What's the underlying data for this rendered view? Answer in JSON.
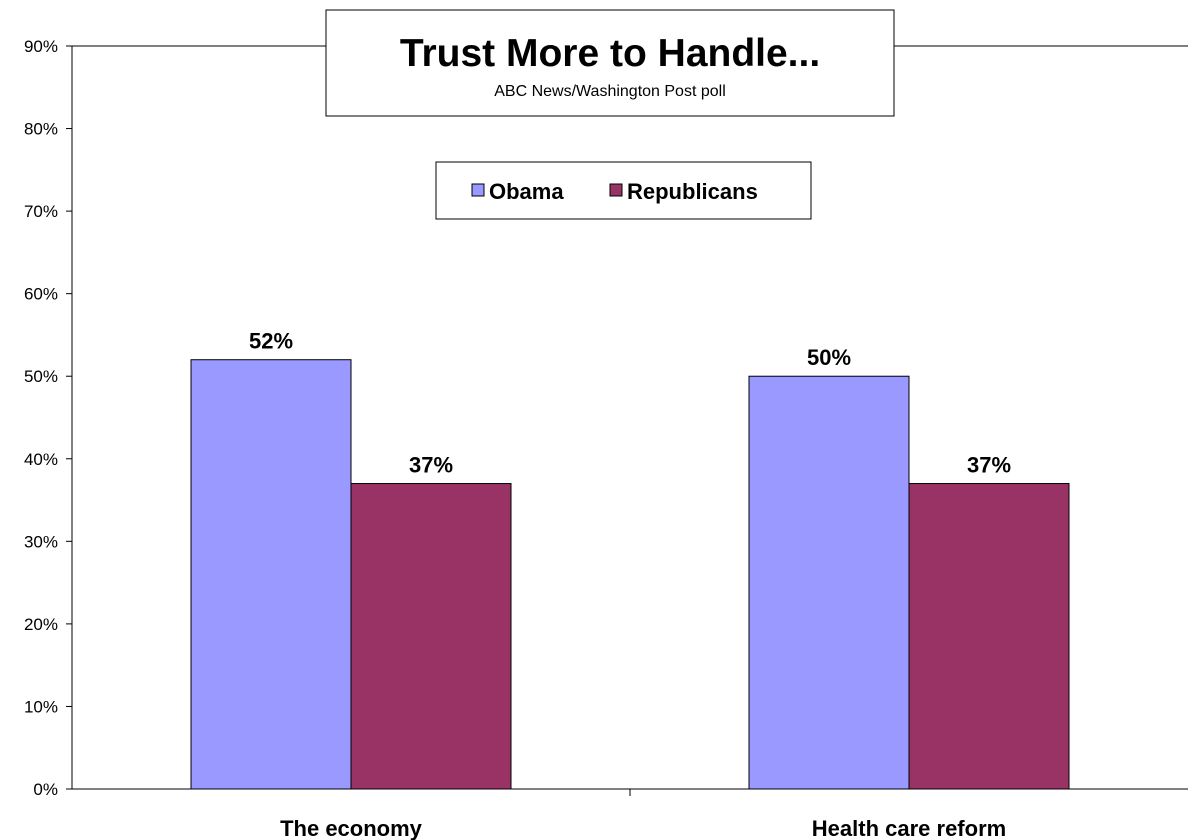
{
  "chart_data": {
    "type": "bar",
    "title": "Trust More to Handle...",
    "subtitle": "ABC News/Washington Post poll",
    "categories": [
      "The economy",
      "Health care reform"
    ],
    "series": [
      {
        "name": "Obama",
        "values": [
          52,
          50
        ],
        "labels": [
          "52%",
          "50%"
        ],
        "color": "#9999ff"
      },
      {
        "name": "Republicans",
        "values": [
          37,
          37
        ],
        "labels": [
          "37%",
          "37%"
        ],
        "color": "#993366"
      }
    ],
    "ylim": [
      0,
      90
    ],
    "y_ticks": [
      0,
      10,
      20,
      30,
      40,
      50,
      60,
      70,
      80,
      90
    ],
    "y_tick_labels": [
      "0%",
      "10%",
      "20%",
      "30%",
      "40%",
      "50%",
      "60%",
      "70%",
      "80%",
      "90%"
    ],
    "xlabel": "",
    "ylabel": "",
    "grid": false,
    "legend_position": "top-center"
  }
}
